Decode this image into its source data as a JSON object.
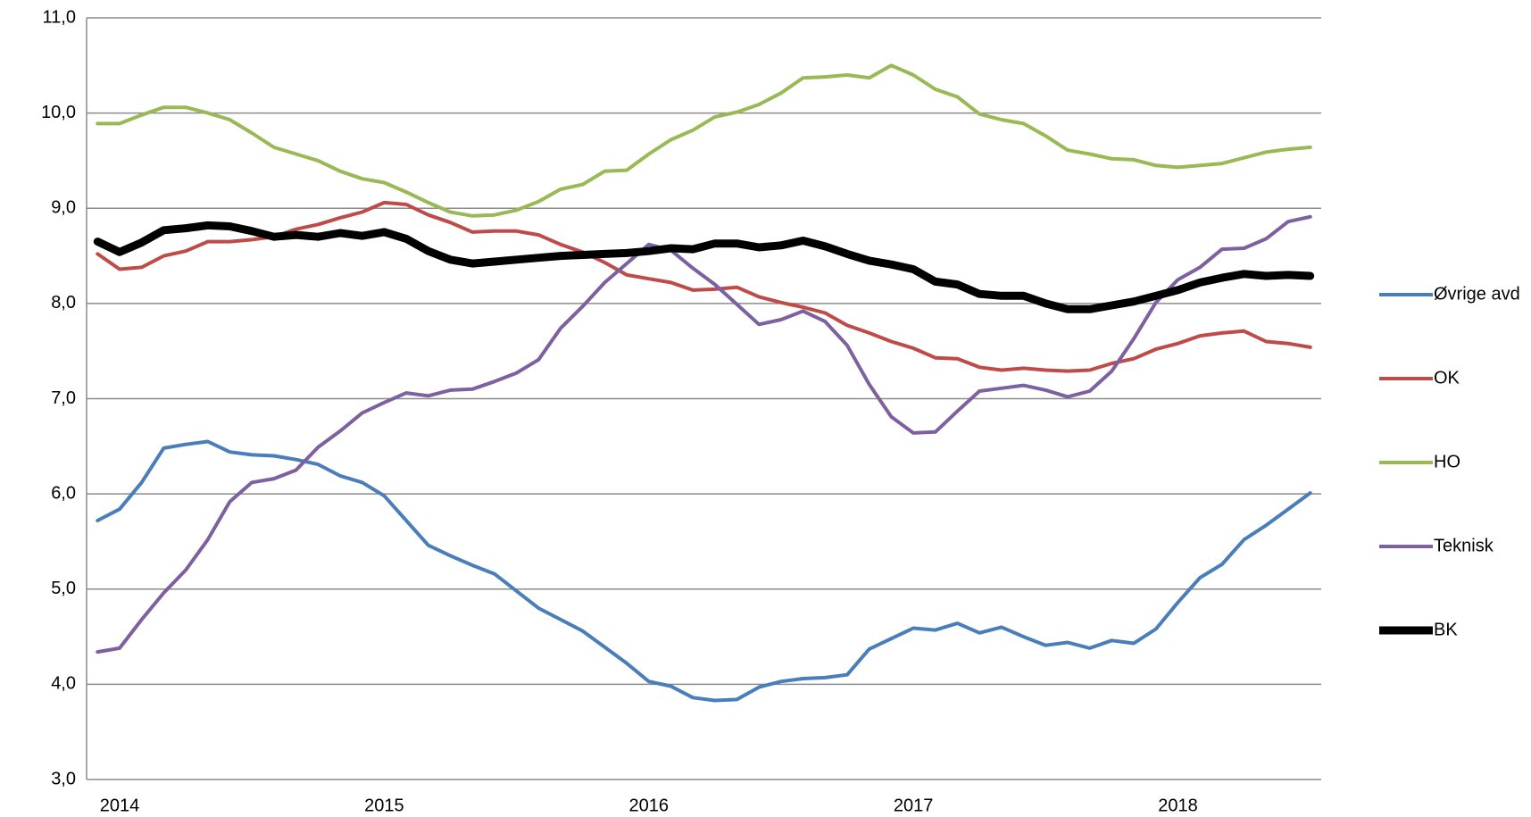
{
  "chart_data": {
    "type": "line",
    "categories": [
      null,
      "2014",
      null,
      null,
      null,
      null,
      null,
      null,
      null,
      null,
      null,
      null,
      null,
      "2015",
      null,
      null,
      null,
      null,
      null,
      null,
      null,
      null,
      null,
      null,
      null,
      "2016",
      null,
      null,
      null,
      null,
      null,
      null,
      null,
      null,
      null,
      null,
      null,
      "2017",
      null,
      null,
      null,
      null,
      null,
      null,
      null,
      null,
      null,
      null,
      null,
      "2018",
      null,
      null,
      null,
      null,
      null,
      null
    ],
    "ylim": [
      3,
      11
    ],
    "yticks": [
      {
        "value": 3,
        "label": "3,0"
      },
      {
        "value": 4,
        "label": "4,0"
      },
      {
        "value": 5,
        "label": "5,0"
      },
      {
        "value": 6,
        "label": "6,0"
      },
      {
        "value": 7,
        "label": "7,0"
      },
      {
        "value": 8,
        "label": "8,0"
      },
      {
        "value": 9,
        "label": "9,0"
      },
      {
        "value": 10,
        "label": "10,0"
      },
      {
        "value": 11,
        "label": "11,0"
      }
    ],
    "grid": true,
    "legend": "right",
    "series": [
      {
        "name": "Øvrige avd",
        "color": "#4a7ebb",
        "line_width": 4,
        "values": [
          5.72,
          5.84,
          6.12,
          6.48,
          6.52,
          6.55,
          6.44,
          6.41,
          6.4,
          6.36,
          6.31,
          6.19,
          6.12,
          5.98,
          5.72,
          5.46,
          5.35,
          5.25,
          5.16,
          4.98,
          4.8,
          4.68,
          4.56,
          4.39,
          4.22,
          4.03,
          3.98,
          3.86,
          3.83,
          3.84,
          3.97,
          4.03,
          4.06,
          4.07,
          4.1,
          4.37,
          4.48,
          4.59,
          4.57,
          4.64,
          4.54,
          4.6,
          4.5,
          4.41,
          4.44,
          4.38,
          4.46,
          4.43,
          4.58,
          4.86,
          5.12,
          5.26,
          5.52,
          5.67,
          5.84,
          6.01
        ]
      },
      {
        "name": "OK",
        "color": "#be4b48",
        "line_width": 4,
        "values": [
          8.52,
          8.36,
          8.38,
          8.5,
          8.55,
          8.65,
          8.65,
          8.67,
          8.7,
          8.78,
          8.83,
          8.9,
          8.96,
          9.06,
          9.04,
          8.93,
          8.85,
          8.75,
          8.76,
          8.76,
          8.72,
          8.62,
          8.54,
          8.43,
          8.3,
          8.26,
          8.22,
          8.14,
          8.15,
          8.17,
          8.07,
          8.01,
          7.96,
          7.9,
          7.77,
          7.69,
          7.6,
          7.53,
          7.43,
          7.42,
          7.33,
          7.3,
          7.32,
          7.3,
          7.29,
          7.3,
          7.37,
          7.42,
          7.52,
          7.58,
          7.66,
          7.69,
          7.71,
          7.6,
          7.58,
          7.54
        ]
      },
      {
        "name": "HO",
        "color": "#98b954",
        "line_width": 4,
        "values": [
          9.89,
          9.89,
          9.98,
          10.06,
          10.06,
          10.0,
          9.93,
          9.79,
          9.64,
          9.57,
          9.5,
          9.39,
          9.31,
          9.27,
          9.17,
          9.06,
          8.96,
          8.92,
          8.93,
          8.98,
          9.07,
          9.2,
          9.25,
          9.39,
          9.4,
          9.57,
          9.72,
          9.82,
          9.96,
          10.01,
          10.09,
          10.21,
          10.37,
          10.38,
          10.4,
          10.37,
          10.5,
          10.4,
          10.25,
          10.17,
          9.99,
          9.93,
          9.89,
          9.76,
          9.61,
          9.57,
          9.52,
          9.51,
          9.45,
          9.43,
          9.45,
          9.47,
          9.53,
          9.59,
          9.62,
          9.64
        ]
      },
      {
        "name": "Teknisk",
        "color": "#7d60a0",
        "line_width": 4,
        "values": [
          4.34,
          4.38,
          4.68,
          4.96,
          5.2,
          5.52,
          5.92,
          6.12,
          6.16,
          6.25,
          6.49,
          6.66,
          6.85,
          6.96,
          7.06,
          7.03,
          7.09,
          7.1,
          7.18,
          7.27,
          7.41,
          7.74,
          7.97,
          8.22,
          8.42,
          8.62,
          8.56,
          8.37,
          8.2,
          7.99,
          7.78,
          7.83,
          7.92,
          7.81,
          7.56,
          7.15,
          6.81,
          6.64,
          6.65,
          6.87,
          7.08,
          7.11,
          7.14,
          7.09,
          7.02,
          7.08,
          7.29,
          7.63,
          8.01,
          8.25,
          8.38,
          8.57,
          8.58,
          8.68,
          8.86,
          8.91
        ]
      },
      {
        "name": "BK",
        "color": "#000000",
        "line_width": 9,
        "values": [
          8.65,
          8.54,
          8.64,
          8.77,
          8.79,
          8.82,
          8.81,
          8.76,
          8.7,
          8.72,
          8.7,
          8.74,
          8.71,
          8.75,
          8.68,
          8.55,
          8.46,
          8.42,
          8.44,
          8.46,
          8.48,
          8.5,
          8.51,
          8.52,
          8.53,
          8.55,
          8.58,
          8.57,
          8.63,
          8.63,
          8.59,
          8.61,
          8.66,
          8.6,
          8.52,
          8.45,
          8.41,
          8.36,
          8.23,
          8.2,
          8.1,
          8.08,
          8.08,
          8.0,
          7.94,
          7.94,
          7.98,
          8.02,
          8.08,
          8.14,
          8.22,
          8.27,
          8.31,
          8.29,
          8.3,
          8.29
        ]
      }
    ]
  }
}
